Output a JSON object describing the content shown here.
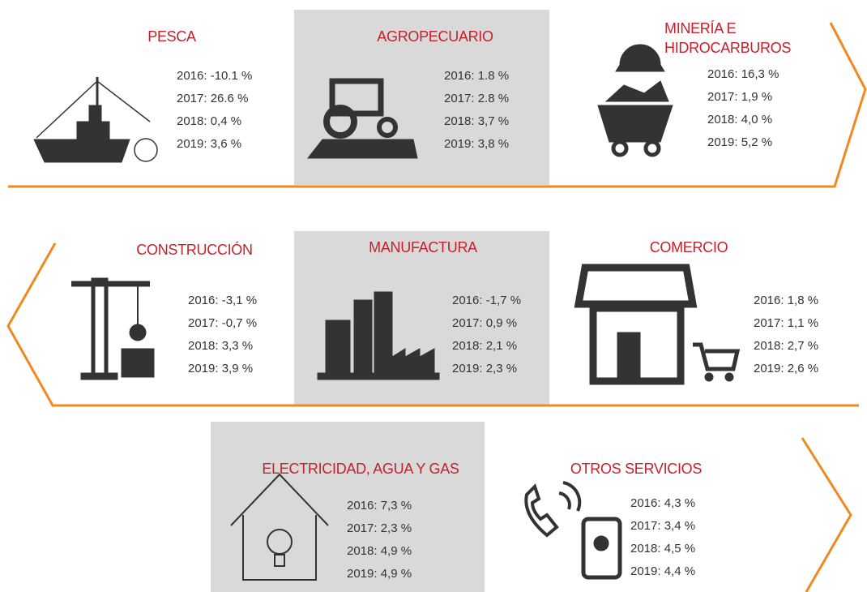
{
  "sectors": [
    {
      "title": "PESCA",
      "lines": [
        "2016: -10.1 %",
        "2017: 26.6 %",
        "2018: 0,4 %",
        "2019: 3,6 %"
      ]
    },
    {
      "title": "AGROPECUARIO",
      "lines": [
        "2016: 1.8 %",
        "2017: 2.8 %",
        "2018: 3,7 %",
        "2019: 3,8 %"
      ]
    },
    {
      "title": "MINERÍA E HIDROCARBUROS",
      "lines": [
        "2016: 16,3 %",
        "2017: 1,9 %",
        "2018: 4,0 %",
        "2019: 5,2 %"
      ]
    },
    {
      "title": "CONSTRUCCIÓN",
      "lines": [
        "2016: -3,1 %",
        "2017: -0,7 %",
        "2018: 3,3 %",
        "2019: 3,9 %"
      ]
    },
    {
      "title": "MANUFACTURA",
      "lines": [
        "2016: -1,7 %",
        "2017: 0,9 %",
        "2018: 2,1 %",
        "2019: 2,3 %"
      ]
    },
    {
      "title": "COMERCIO",
      "lines": [
        "2016: 1,8 %",
        "2017: 1,1 %",
        "2018: 2,7 %",
        "2019: 2,6 %"
      ]
    },
    {
      "title": "ELECTRICIDAD, AGUA Y GAS",
      "lines": [
        "2016: 7,3 %",
        "2017: 2,3 %",
        "2018: 4,9 %",
        "2019: 4,9 %"
      ]
    },
    {
      "title": "OTROS SERVICIOS",
      "lines": [
        "2016: 4,3 %",
        "2017: 3,4 %",
        "2018: 4,5 %",
        "2019: 4,4 %"
      ]
    }
  ]
}
